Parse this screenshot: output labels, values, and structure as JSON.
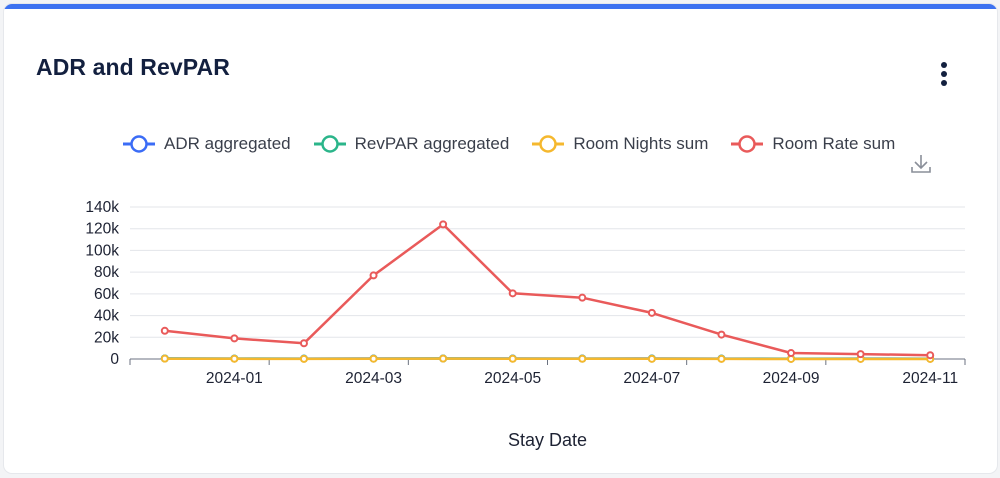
{
  "card": {
    "title": "ADR and RevPAR",
    "menu_icon": "more-vertical-icon",
    "download_icon": "download-icon"
  },
  "chart_data": {
    "type": "line",
    "title": "ADR and RevPAR",
    "xlabel": "Stay Date",
    "ylabel": "",
    "x": [
      "2023-12",
      "2024-01",
      "2024-02",
      "2024-03",
      "2024-04",
      "2024-05",
      "2024-06",
      "2024-07",
      "2024-08",
      "2024-09",
      "2024-10",
      "2024-11"
    ],
    "x_ticks": [
      "2024-01",
      "2024-03",
      "2024-05",
      "2024-07",
      "2024-09",
      "2024-11"
    ],
    "y_ticks": [
      "0",
      "20k",
      "40k",
      "60k",
      "80k",
      "100k",
      "120k",
      "140k"
    ],
    "ylim": [
      0,
      140000
    ],
    "grid": true,
    "legend_position": "top",
    "series": [
      {
        "name": "ADR aggregated",
        "color": "#3b6cf6",
        "values": [
          500,
          400,
          350,
          420,
          480,
          430,
          410,
          420,
          380,
          300,
          350,
          320
        ]
      },
      {
        "name": "RevPAR aggregated",
        "color": "#2bb58a",
        "values": [
          450,
          380,
          300,
          380,
          420,
          380,
          350,
          360,
          320,
          250,
          300,
          280
        ]
      },
      {
        "name": "Room Nights sum",
        "color": "#f5b82e",
        "values": [
          300,
          200,
          120,
          260,
          400,
          200,
          180,
          150,
          100,
          40,
          30,
          20
        ]
      },
      {
        "name": "Room Rate sum",
        "color": "#e95a5a",
        "values": [
          26000,
          19000,
          14500,
          77000,
          124000,
          60500,
          56500,
          42500,
          22500,
          5500,
          4500,
          3500
        ]
      }
    ]
  }
}
